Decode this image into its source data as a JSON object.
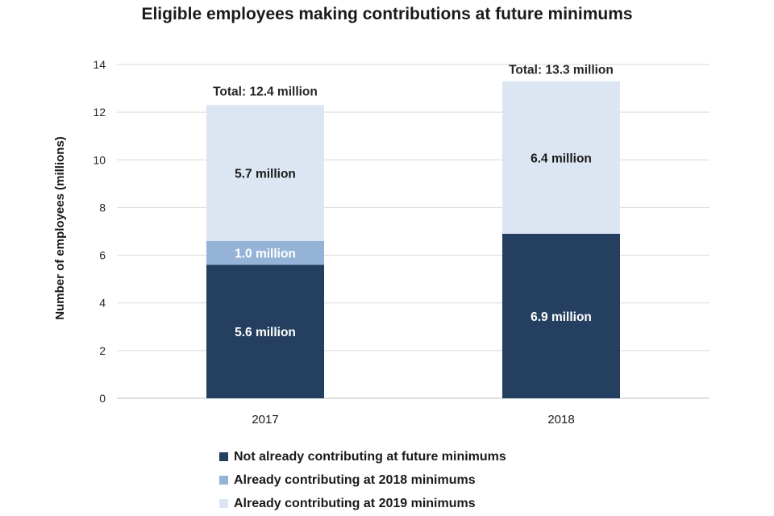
{
  "chart_data": {
    "type": "bar",
    "stacked": true,
    "title": "Eligible employees making contributions at future minimums",
    "xlabel": "",
    "ylabel": "Number of employees (millions)",
    "ylim": [
      0,
      14
    ],
    "yticks": [
      0,
      2,
      4,
      6,
      8,
      10,
      12,
      14
    ],
    "grid": true,
    "legend_position": "bottom",
    "categories": [
      "2017",
      "2018"
    ],
    "series": [
      {
        "name": "Not already contributing at future minimums",
        "color": "#243f60",
        "values": [
          5.6,
          6.9
        ],
        "labels": [
          "5.6 million",
          "6.9 million"
        ],
        "label_color": "#ffffff"
      },
      {
        "name": "Already contributing at 2018 minimums",
        "color": "#95b3d7",
        "values": [
          1.0,
          0
        ],
        "labels": [
          "1.0 million",
          ""
        ],
        "label_color": "#ffffff"
      },
      {
        "name": "Already contributing at 2019 minimums",
        "color": "#dce6f2",
        "values": [
          5.7,
          6.4
        ],
        "labels": [
          "5.7 million",
          "6.4 million"
        ],
        "label_color": "#1a1a1a"
      }
    ],
    "totals": [
      12.4,
      13.3
    ],
    "total_labels": [
      "Total: 12.4 million",
      "Total: 13.3 million"
    ]
  }
}
